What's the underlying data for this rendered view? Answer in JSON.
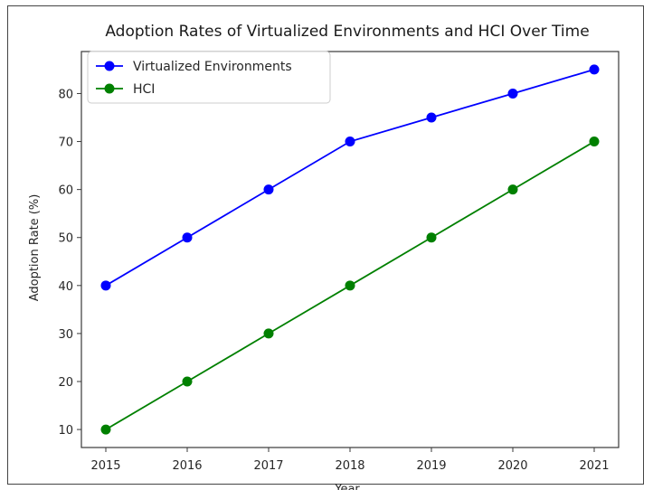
{
  "chart_data": {
    "type": "line",
    "title": "Adoption Rates of Virtualized Environments and HCI Over Time",
    "xlabel": "Year",
    "ylabel": "Adoption Rate (%)",
    "x": [
      2015,
      2016,
      2017,
      2018,
      2019,
      2020,
      2021
    ],
    "series": [
      {
        "name": "Virtualized Environments",
        "values": [
          40,
          50,
          60,
          70,
          75,
          80,
          85
        ],
        "color": "#0000ff",
        "marker": "circle"
      },
      {
        "name": "HCI",
        "values": [
          10,
          20,
          30,
          40,
          50,
          60,
          70
        ],
        "color": "#008000",
        "marker": "circle"
      }
    ],
    "yticks": [
      10,
      20,
      30,
      40,
      50,
      60,
      70,
      80
    ],
    "ylim": [
      6.25,
      88.75
    ],
    "xlim": [
      2014.7,
      2021.3
    ],
    "grid": false,
    "legend_position": "upper-left"
  }
}
